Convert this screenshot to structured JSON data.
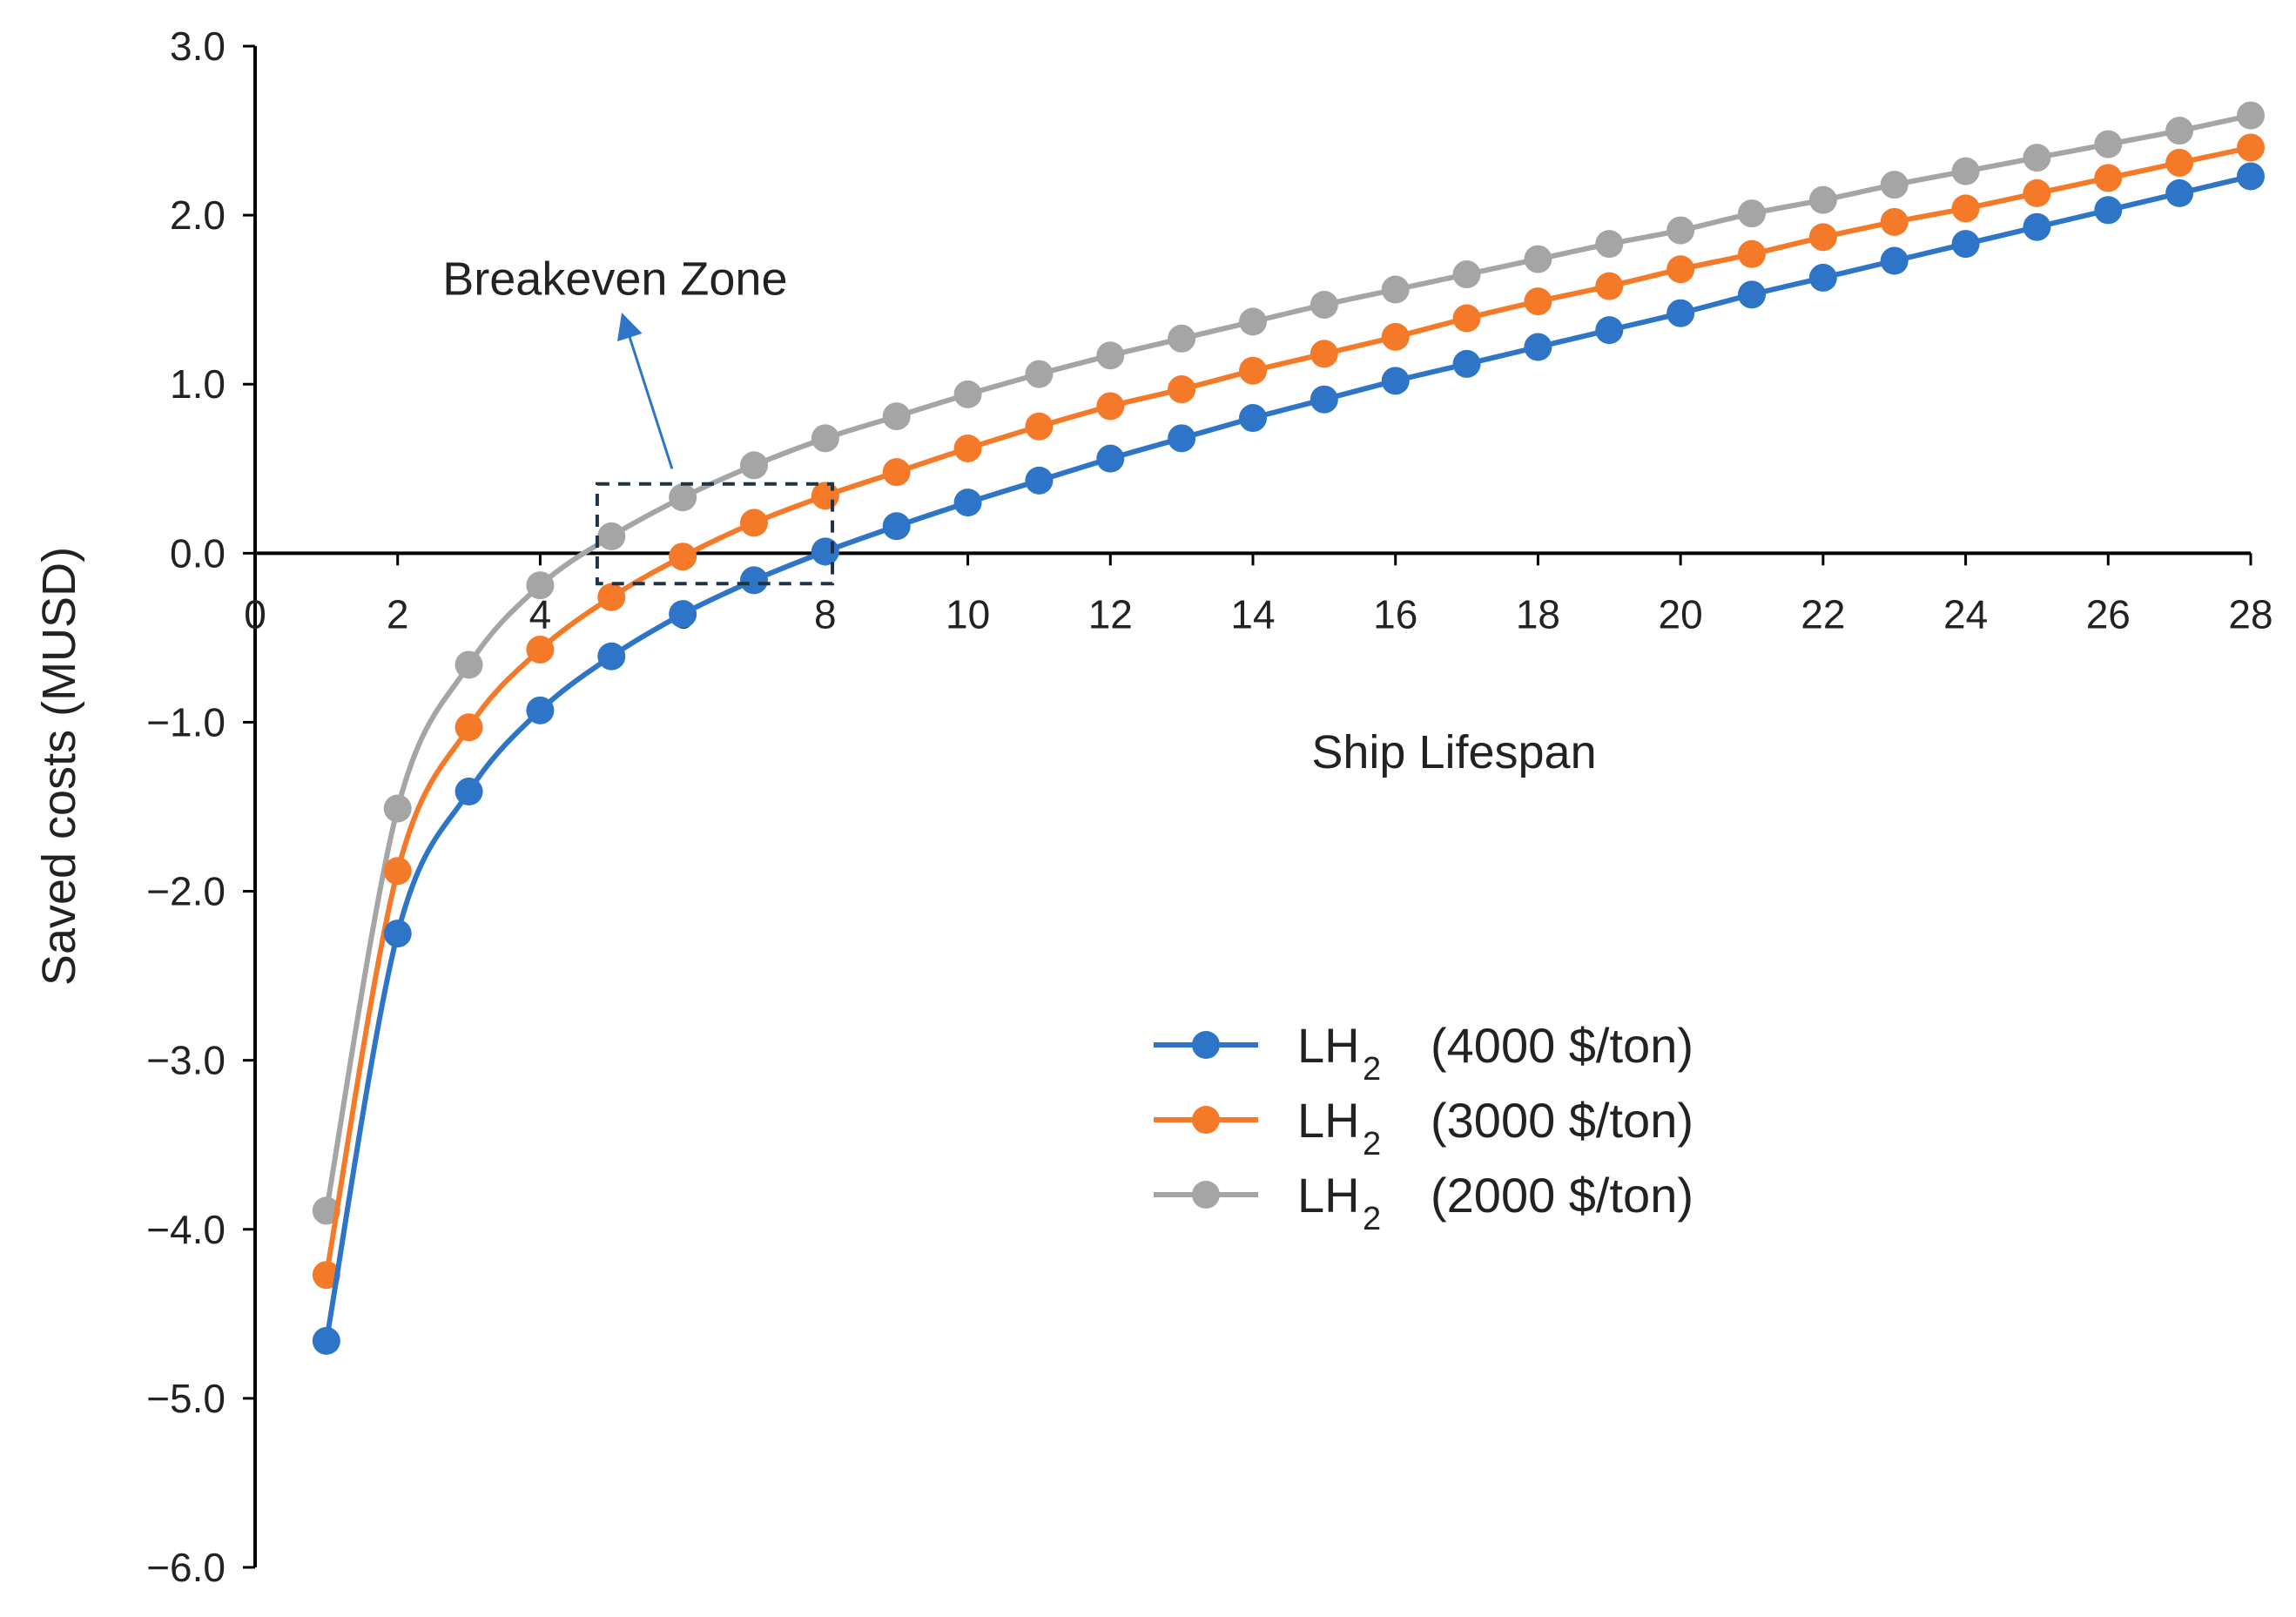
{
  "chart_data": {
    "type": "line",
    "title": "",
    "xlabel": "Ship Lifespan",
    "ylabel": "Saved costs (MUSD)",
    "xlim": [
      0,
      28
    ],
    "ylim": [
      -6.0,
      3.0
    ],
    "x_ticks": [
      0,
      2,
      4,
      6,
      8,
      10,
      12,
      14,
      16,
      18,
      20,
      22,
      24,
      26,
      28
    ],
    "x_tick_labels": [
      "0",
      "2",
      "4",
      "6",
      "8",
      "10",
      "12",
      "14",
      "16",
      "18",
      "20",
      "22",
      "24",
      "26",
      "28"
    ],
    "y_ticks": [
      3.0,
      2.0,
      1.0,
      0.0,
      -1.0,
      -2.0,
      -3.0,
      -4.0,
      -5.0,
      -6.0
    ],
    "y_tick_labels": [
      "3.0",
      "2.0",
      "1.0",
      "0.0",
      "−1.0",
      "−2.0",
      "−3.0",
      "−4.0",
      "−5.0",
      "−6.0"
    ],
    "grid": false,
    "legend_position": "center-right",
    "x": [
      1,
      2,
      3,
      4,
      5,
      6,
      7,
      8,
      9,
      10,
      11,
      12,
      13,
      14,
      15,
      16,
      17,
      18,
      19,
      20,
      21,
      22,
      23,
      24,
      25,
      26,
      27,
      28
    ],
    "series": [
      {
        "name": "LH2 (4000 $/ton)",
        "legend_main": "LH",
        "legend_sub": "2",
        "legend_price": "(4000 $/ton)",
        "color": "#2E75C7",
        "values": [
          -4.66,
          -2.25,
          -1.41,
          -0.93,
          -0.61,
          -0.36,
          -0.16,
          0.01,
          0.16,
          0.3,
          0.43,
          0.56,
          0.68,
          0.8,
          0.91,
          1.02,
          1.12,
          1.22,
          1.32,
          1.42,
          1.53,
          1.63,
          1.73,
          1.83,
          1.93,
          2.03,
          2.13,
          2.23
        ]
      },
      {
        "name": "LH2 (3000 $/ton)",
        "legend_main": "LH",
        "legend_sub": "2",
        "legend_price": "(3000 $/ton)",
        "color": "#F47A2A",
        "values": [
          -4.27,
          -1.88,
          -1.03,
          -0.57,
          -0.26,
          -0.02,
          0.18,
          0.34,
          0.48,
          0.62,
          0.75,
          0.87,
          0.97,
          1.08,
          1.18,
          1.28,
          1.39,
          1.49,
          1.58,
          1.68,
          1.77,
          1.87,
          1.96,
          2.04,
          2.13,
          2.22,
          2.31,
          2.4
        ]
      },
      {
        "name": "LH2 (2000 $/ton)",
        "legend_main": "LH",
        "legend_sub": "2",
        "legend_price": "(2000 $/ton)",
        "color": "#A5A5A5",
        "values": [
          -3.89,
          -1.51,
          -0.66,
          -0.19,
          0.1,
          0.33,
          0.52,
          0.68,
          0.81,
          0.94,
          1.06,
          1.17,
          1.27,
          1.37,
          1.47,
          1.56,
          1.65,
          1.74,
          1.83,
          1.91,
          2.01,
          2.09,
          2.18,
          2.26,
          2.34,
          2.42,
          2.5,
          2.59
        ]
      }
    ],
    "annotation": {
      "text": "Breakeven Zone",
      "zone_x_range": [
        4.8,
        8.1
      ],
      "zone_y_range": [
        -0.18,
        0.41
      ],
      "arrow_from": [
        5.85,
        0.5
      ],
      "arrow_to": [
        5.2,
        1.35
      ],
      "text_anchor": [
        5.05,
        1.53
      ]
    }
  }
}
